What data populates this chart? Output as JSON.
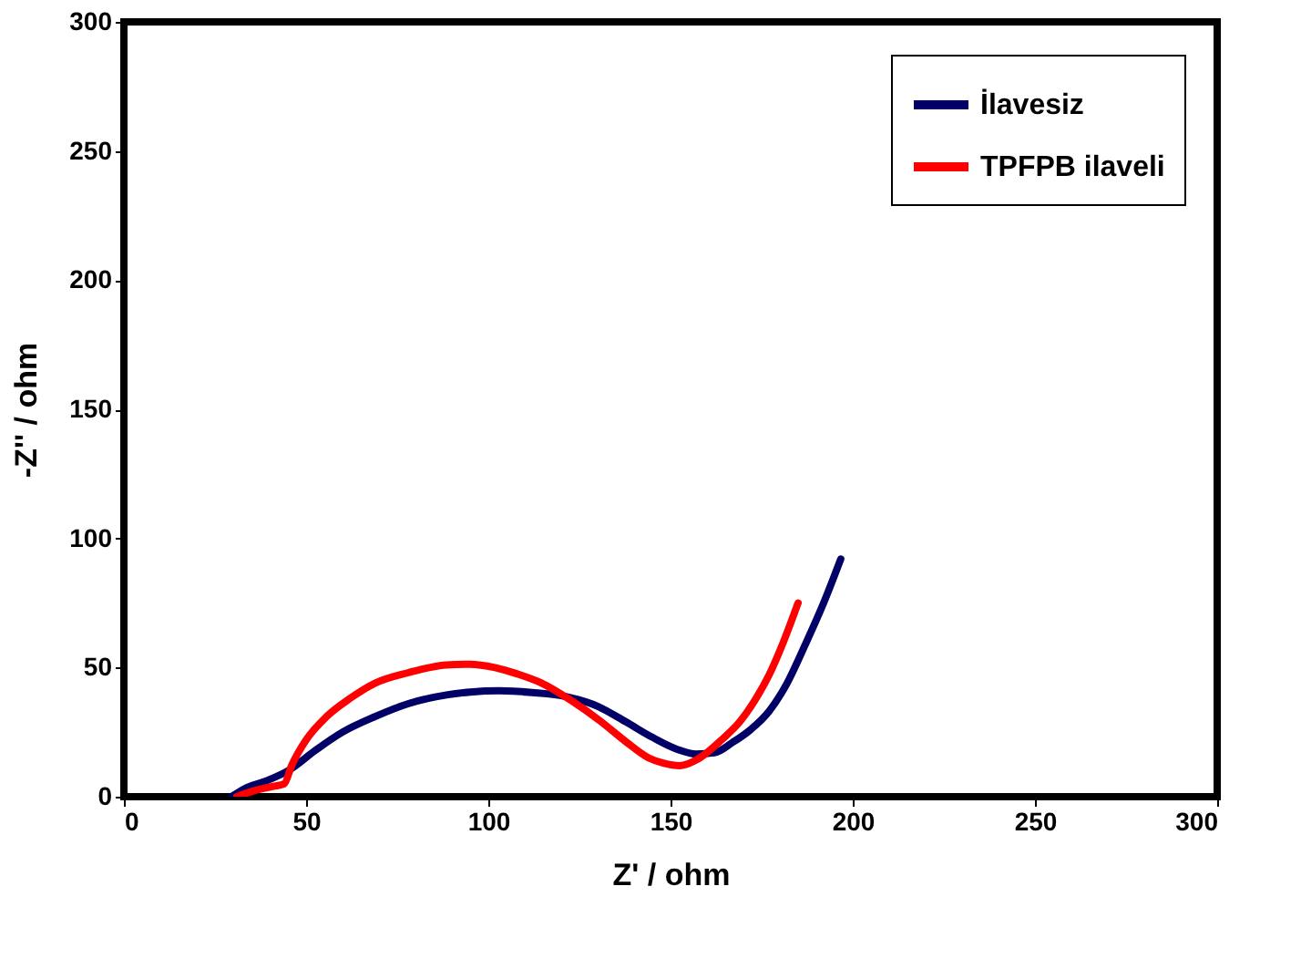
{
  "chart_data": {
    "type": "line",
    "xlabel": "Z' / ohm",
    "ylabel": "-Z'' / ohm",
    "xlim": [
      0,
      300
    ],
    "ylim": [
      0,
      300
    ],
    "xticks": [
      0,
      50,
      100,
      150,
      200,
      250,
      300
    ],
    "yticks": [
      0,
      50,
      100,
      150,
      200,
      250,
      300
    ],
    "grid": false,
    "legend": "top right",
    "marker": "none",
    "line_style": "solid",
    "series": [
      {
        "name": "İlavesiz",
        "color": "#000066",
        "x": [
          29.5,
          33,
          39.4,
          45,
          52.6,
          60,
          68.9,
          78,
          88.5,
          95,
          103,
          112,
          121.5,
          130,
          137.7,
          145,
          152.5,
          157,
          162,
          167,
          172,
          177,
          182,
          187,
          192,
          196.7
        ],
        "values": [
          0,
          3,
          6.3,
          10,
          18,
          25,
          31,
          36,
          39.4,
          40.5,
          41,
          40.3,
          38.7,
          35,
          29,
          23,
          18,
          16.5,
          17,
          21,
          26,
          33,
          44,
          59,
          75,
          92
        ]
      },
      {
        "name": "TPFPB ilaveli",
        "color": "#ff0000",
        "x": [
          31,
          35,
          41,
          44,
          46,
          50,
          55.6,
          62,
          69,
          78,
          88.5,
          95,
          101.8,
          108,
          114.6,
          123,
          131,
          138,
          144,
          148,
          152.5,
          158,
          164,
          169,
          173,
          177,
          181,
          185
        ],
        "values": [
          0,
          2,
          4,
          5,
          12,
          22,
          31,
          38,
          44,
          48,
          51,
          51.3,
          50,
          47.5,
          44,
          37,
          29,
          21,
          15,
          13,
          12,
          15,
          22,
          29,
          37,
          47,
          60,
          75
        ]
      }
    ]
  }
}
